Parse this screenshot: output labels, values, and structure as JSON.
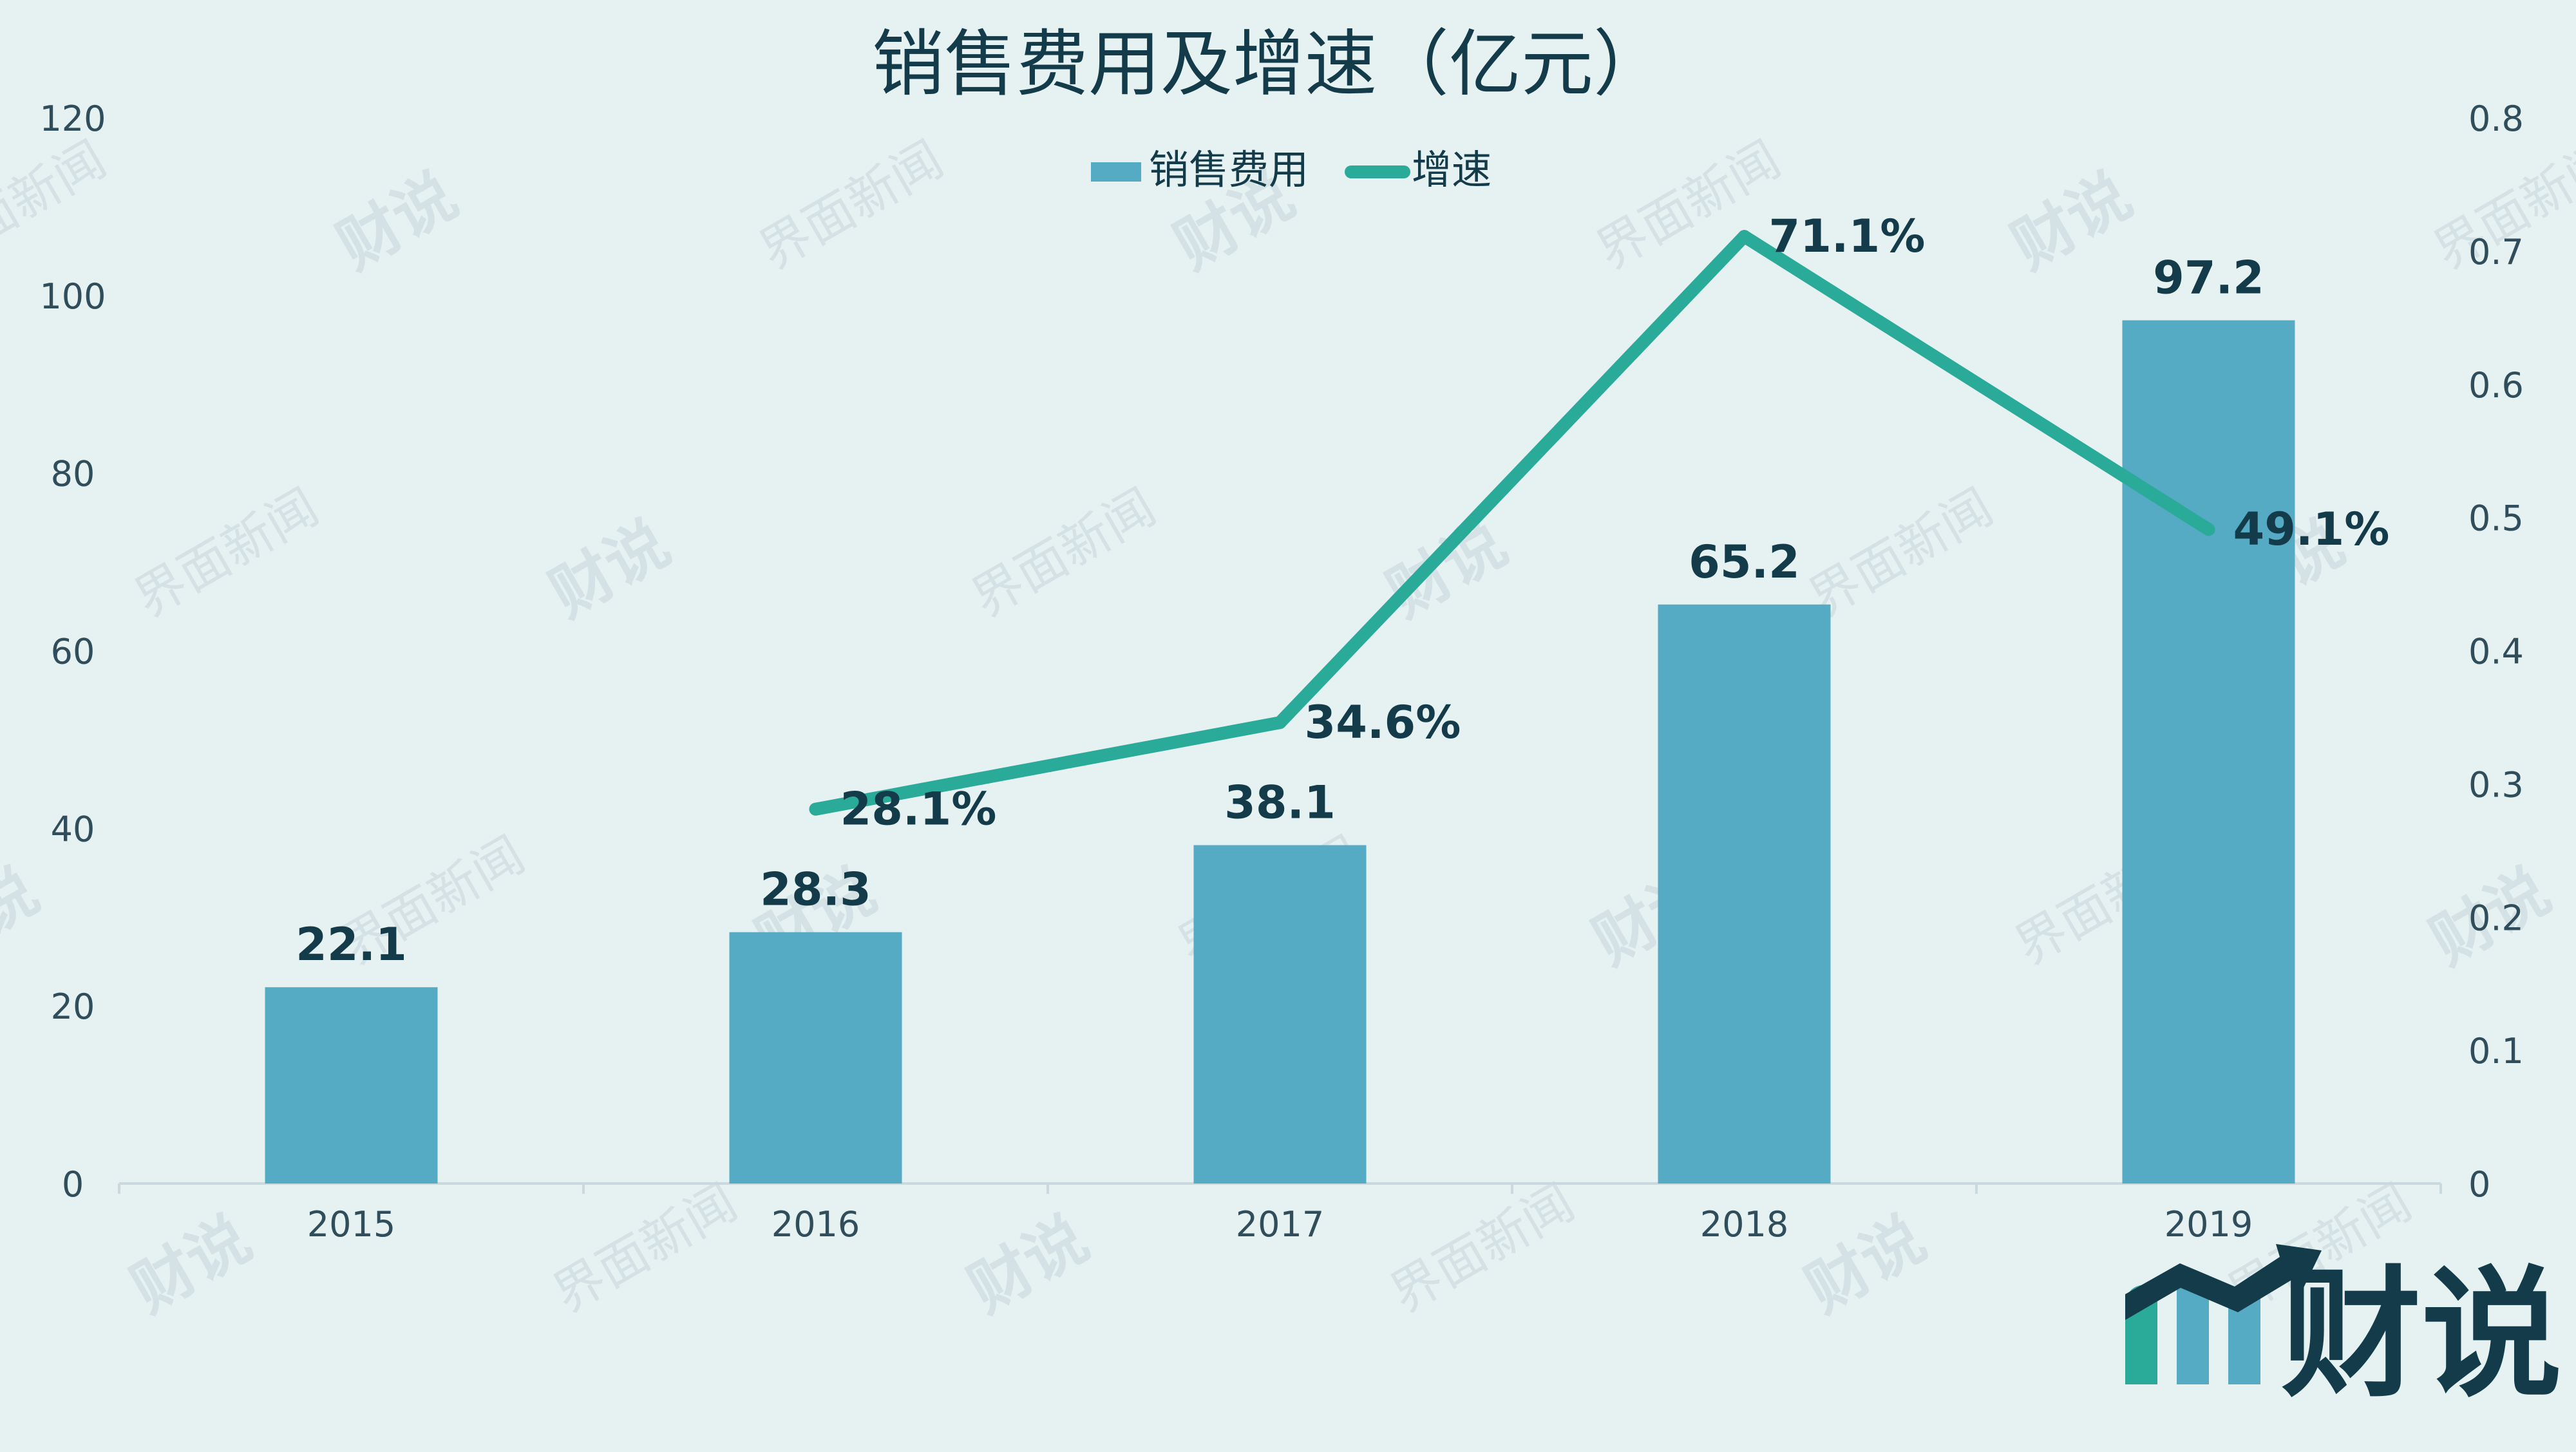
{
  "chart_data": {
    "type": "bar",
    "title": "销售费用及增速（亿元）",
    "categories": [
      "2015",
      "2016",
      "2017",
      "2018",
      "2019"
    ],
    "series": [
      {
        "name": "销售费用",
        "type": "bar",
        "axis": "left",
        "values": [
          22.1,
          28.3,
          38.1,
          65.2,
          97.2
        ],
        "value_labels": [
          "22.1",
          "28.3",
          "38.1",
          "65.2",
          "97.2"
        ],
        "color": "#55aac4"
      },
      {
        "name": "增速",
        "type": "line",
        "axis": "right",
        "values": [
          null,
          0.281,
          0.346,
          0.711,
          0.491
        ],
        "value_labels": [
          "",
          "28.1%",
          "34.6%",
          "71.1%",
          "49.1%"
        ],
        "color": "#2aaa99"
      }
    ],
    "y_left": {
      "ylim": [
        0,
        120
      ],
      "ticks": [
        0,
        20,
        40,
        60,
        80,
        100,
        120
      ],
      "tick_labels": [
        "0",
        "20",
        "40",
        "60",
        "80",
        "100",
        "120"
      ]
    },
    "y_right": {
      "ylim": [
        0,
        0.8
      ],
      "ticks": [
        0,
        0.1,
        0.2,
        0.3,
        0.4,
        0.5,
        0.6,
        0.7,
        0.8
      ],
      "tick_labels": [
        "0",
        "0.1",
        "0.2",
        "0.3",
        "0.4",
        "0.5",
        "0.6",
        "0.7",
        "0.8"
      ]
    },
    "legend_position": "top-center",
    "grid": false
  },
  "watermark": {
    "text_a": "界面新闻",
    "text_b": "财说"
  },
  "logo": {
    "text": "财说"
  },
  "colors": {
    "background": "#e6f1f2",
    "title": "#143b4a",
    "axis_text": "#2f4d5a",
    "data_label": "#143b4a",
    "axis_line": "#c9d9de",
    "watermark": "#c8d8dc",
    "logo_dark": "#143b4a",
    "logo_teal": "#2aaa99",
    "logo_blue": "#55aac4"
  }
}
